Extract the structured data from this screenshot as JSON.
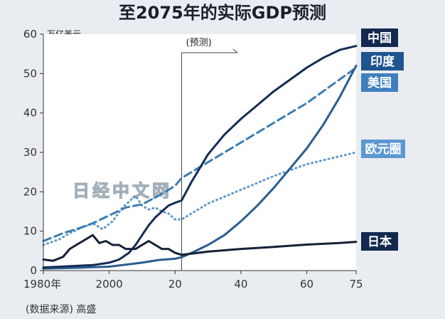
{
  "chart_data": {
    "type": "line",
    "title": "至2075年的实际GDP预测",
    "unit_label": "万亿美元",
    "forecast_label": "(预测)",
    "forecast_start_year": 2022,
    "source_label": "(数据来源) 高盛",
    "watermark": "日经中文网",
    "xlim": [
      1980,
      2075
    ],
    "ylim": [
      0,
      60
    ],
    "y_ticks": [
      0,
      10,
      20,
      30,
      40,
      50,
      60
    ],
    "x_ticks": [
      {
        "value": 1980,
        "label": "1980年"
      },
      {
        "value": 2000,
        "label": "2000"
      },
      {
        "value": 2020,
        "label": "20"
      },
      {
        "value": 2040,
        "label": "40"
      },
      {
        "value": 2060,
        "label": "60"
      },
      {
        "value": 2075,
        "label": "75"
      }
    ],
    "grid": false,
    "legend_placement": "right, at line ends",
    "series": [
      {
        "name": "中国",
        "color": "#152c55",
        "style": "solid",
        "x": [
          1980,
          1985,
          1990,
          1995,
          2000,
          2003,
          2006,
          2008,
          2010,
          2012,
          2014,
          2016,
          2018,
          2020,
          2022,
          2025,
          2030,
          2035,
          2040,
          2045,
          2050,
          2055,
          2060,
          2065,
          2070,
          2075
        ],
        "y": [
          0.8,
          1.0,
          1.2,
          1.4,
          2.0,
          2.8,
          4.5,
          6.5,
          9.0,
          11.5,
          13.5,
          15.0,
          16.5,
          17.2,
          17.8,
          22.5,
          29.5,
          34.5,
          38.5,
          42.0,
          45.5,
          48.5,
          51.5,
          54.0,
          56.0,
          57.0
        ]
      },
      {
        "name": "印度",
        "color": "#2a5d8f",
        "style": "solid",
        "x": [
          1980,
          1990,
          2000,
          2010,
          2015,
          2020,
          2022,
          2025,
          2030,
          2035,
          2040,
          2045,
          2050,
          2055,
          2060,
          2065,
          2070,
          2075
        ],
        "y": [
          0.5,
          0.7,
          1.0,
          2.0,
          2.7,
          3.0,
          3.4,
          4.5,
          6.5,
          9.0,
          12.5,
          16.5,
          21.0,
          26.0,
          31.0,
          37.0,
          44.0,
          52.0
        ]
      },
      {
        "name": "美国",
        "color": "#3b7cb2",
        "style": "dashed",
        "x": [
          1980,
          1983,
          1986,
          1990,
          1995,
          2000,
          2005,
          2008,
          2010,
          2015,
          2020,
          2022,
          2030,
          2040,
          2050,
          2060,
          2070,
          2075
        ],
        "y": [
          7.5,
          8.5,
          9.5,
          10.5,
          12.0,
          14.0,
          16.0,
          16.5,
          16.8,
          19.0,
          21.5,
          23.5,
          27.5,
          32.5,
          37.5,
          42.5,
          48.5,
          51.5
        ]
      },
      {
        "name": "欧元圈",
        "color": "#5c97c8",
        "style": "dotted",
        "x": [
          1980,
          1985,
          1988,
          1992,
          1995,
          1998,
          2001,
          2004,
          2006,
          2008,
          2010,
          2012,
          2014,
          2016,
          2018,
          2020,
          2022,
          2025,
          2030,
          2040,
          2050,
          2060,
          2070,
          2075
        ],
        "y": [
          6.5,
          8.0,
          9.5,
          11.0,
          12.0,
          10.5,
          12.5,
          16.0,
          17.5,
          19.0,
          16.5,
          15.5,
          16.0,
          15.0,
          14.5,
          13.0,
          13.0,
          14.5,
          17.0,
          20.5,
          24.0,
          27.0,
          29.0,
          30.0
        ]
      },
      {
        "name": "日本",
        "color": "#152036",
        "style": "solid",
        "x": [
          1980,
          1983,
          1986,
          1988,
          1990,
          1992,
          1995,
          1997,
          1999,
          2001,
          2003,
          2005,
          2008,
          2010,
          2012,
          2014,
          2016,
          2018,
          2020,
          2022,
          2030,
          2040,
          2050,
          2060,
          2070,
          2075
        ],
        "y": [
          2.8,
          2.5,
          3.5,
          5.5,
          6.5,
          7.5,
          9.0,
          7.0,
          7.5,
          6.5,
          6.5,
          5.5,
          5.5,
          6.5,
          7.5,
          6.5,
          5.5,
          5.5,
          4.5,
          4.0,
          4.8,
          5.5,
          6.0,
          6.6,
          7.0,
          7.3
        ]
      }
    ],
    "legend": [
      {
        "label": "中国",
        "color": "#14294f"
      },
      {
        "label": "印度",
        "color": "#1f5590"
      },
      {
        "label": "美国",
        "color": "#3f7fc0"
      },
      {
        "label": "欧元圈",
        "color": "#5c97d2"
      },
      {
        "label": "日本",
        "color": "#14294f"
      }
    ]
  }
}
